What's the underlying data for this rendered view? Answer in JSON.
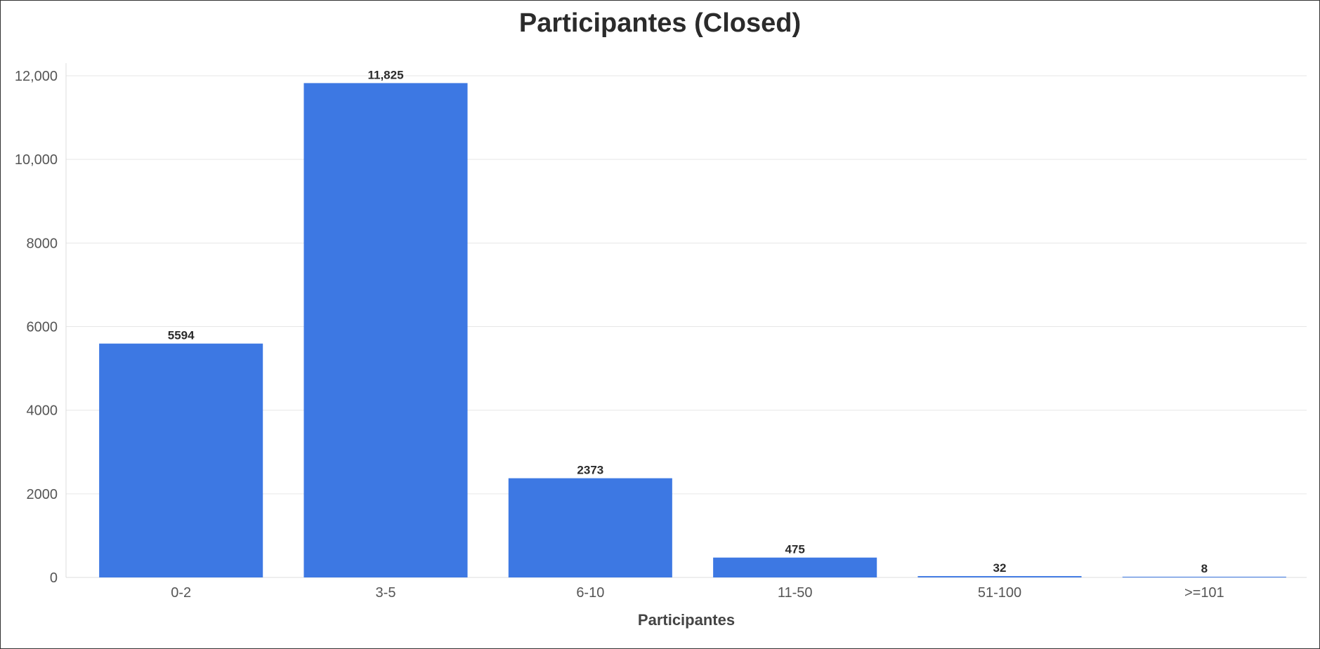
{
  "chart_data": {
    "type": "bar",
    "title": "Participantes (Closed)",
    "xlabel": "Participantes",
    "ylabel": "",
    "categories": [
      "0-2",
      "3-5",
      "6-10",
      "11-50",
      "51-100",
      ">=101"
    ],
    "values": [
      5594,
      11825,
      2373,
      475,
      32,
      8
    ],
    "value_labels": [
      "5594",
      "11,825",
      "2373",
      "475",
      "32",
      "8"
    ],
    "ylim": [
      0,
      12000
    ],
    "yticks": [
      0,
      2000,
      4000,
      6000,
      8000,
      10000,
      12000
    ],
    "ytick_labels": [
      "0",
      "2000",
      "4000",
      "6000",
      "8000",
      "10,000",
      "12,000"
    ],
    "grid": true,
    "colors": {
      "bar": "#3d78e3",
      "grid": "#e6e6e6",
      "axis": "#dddddd"
    }
  }
}
